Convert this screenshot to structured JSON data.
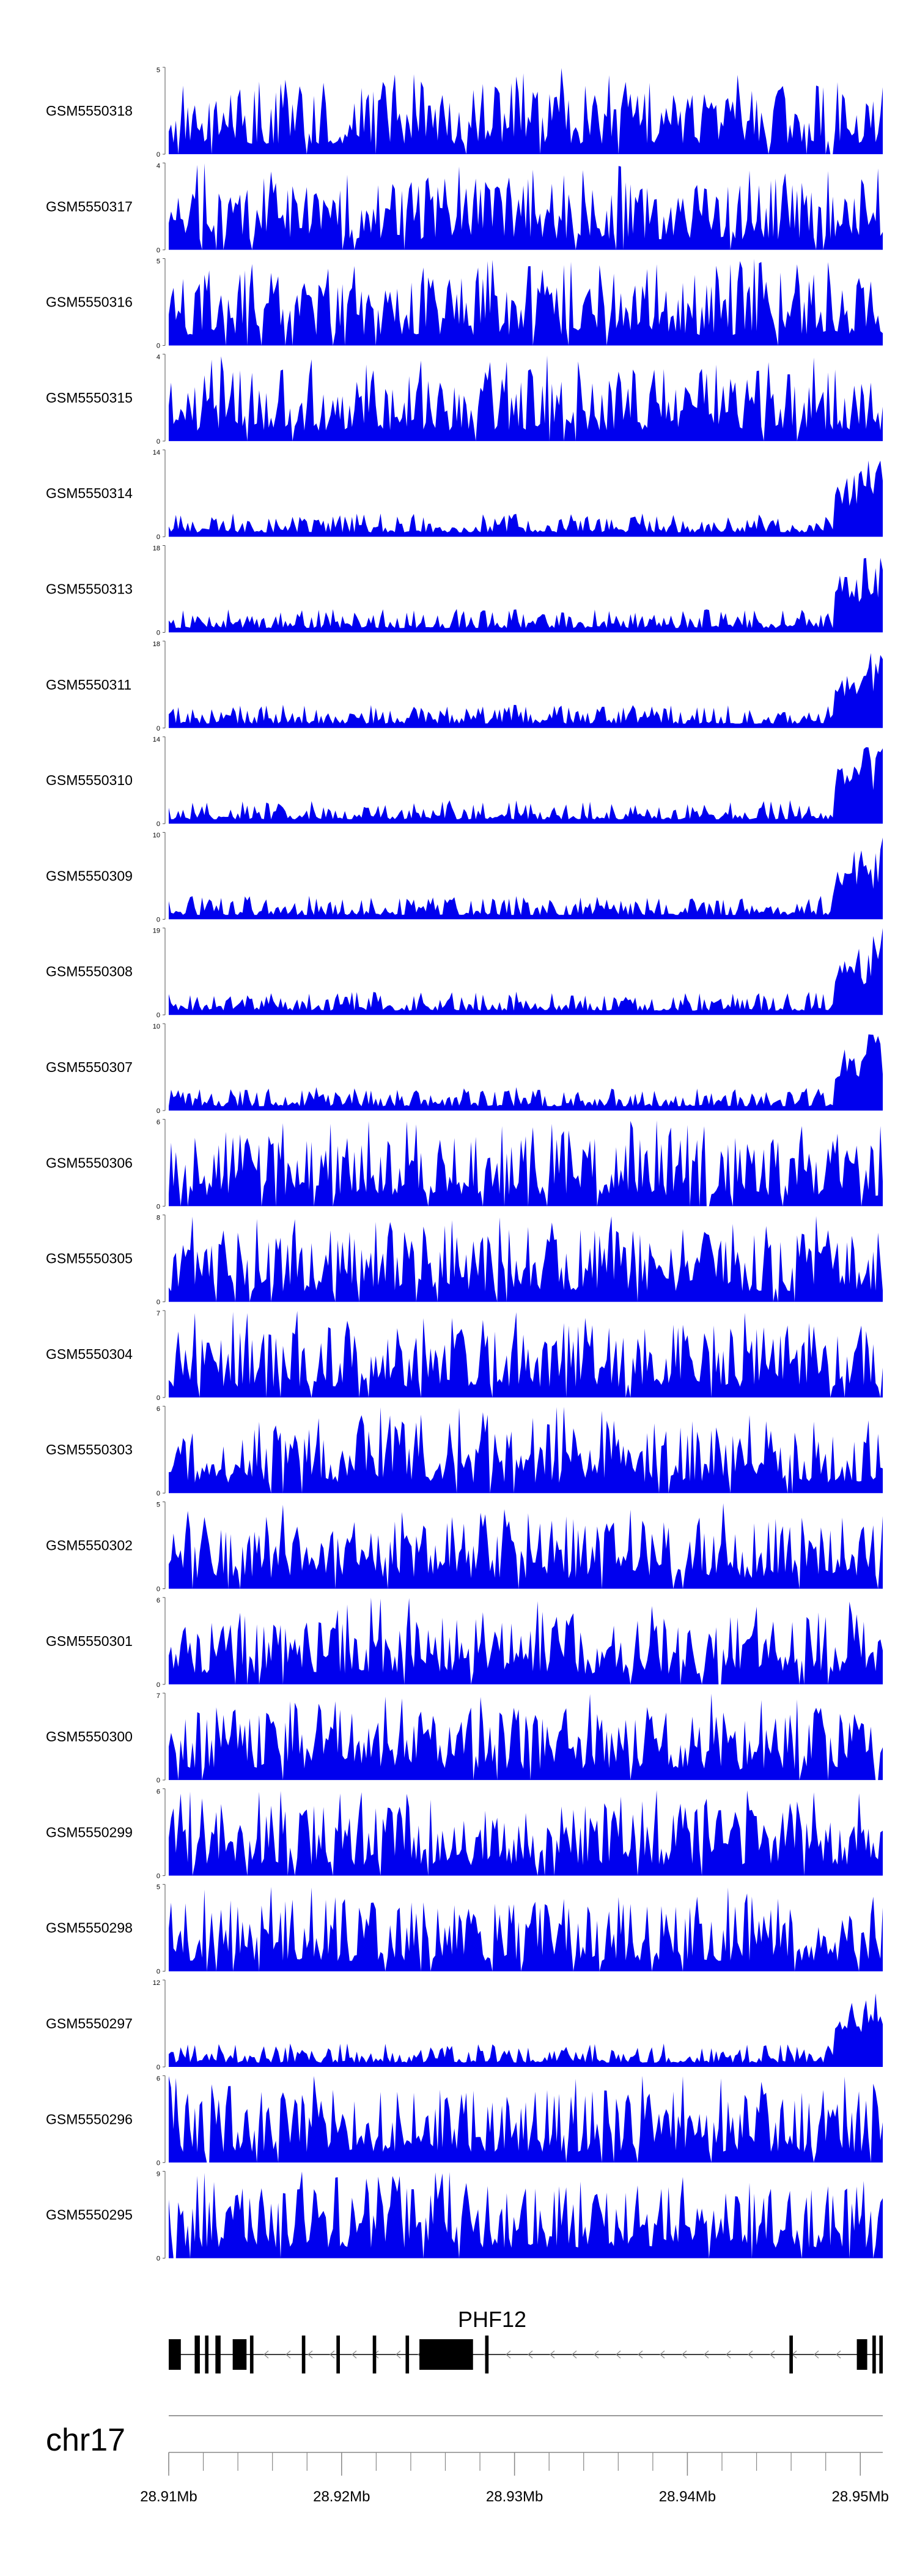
{
  "chart_data": {
    "type": "area",
    "tracks": [
      {
        "name": "GSM5550318",
        "ymax": 5
      },
      {
        "name": "GSM5550317",
        "ymax": 4
      },
      {
        "name": "GSM5550316",
        "ymax": 5
      },
      {
        "name": "GSM5550315",
        "ymax": 4
      },
      {
        "name": "GSM5550314",
        "ymax": 14
      },
      {
        "name": "GSM5550313",
        "ymax": 18
      },
      {
        "name": "GSM5550311",
        "ymax": 18
      },
      {
        "name": "GSM5550310",
        "ymax": 14
      },
      {
        "name": "GSM5550309",
        "ymax": 10
      },
      {
        "name": "GSM5550308",
        "ymax": 19
      },
      {
        "name": "GSM5550307",
        "ymax": 10
      },
      {
        "name": "GSM5550306",
        "ymax": 6
      },
      {
        "name": "GSM5550305",
        "ymax": 8
      },
      {
        "name": "GSM5550304",
        "ymax": 7
      },
      {
        "name": "GSM5550303",
        "ymax": 6
      },
      {
        "name": "GSM5550302",
        "ymax": 5
      },
      {
        "name": "GSM5550301",
        "ymax": 6
      },
      {
        "name": "GSM5550300",
        "ymax": 7
      },
      {
        "name": "GSM5550299",
        "ymax": 6
      },
      {
        "name": "GSM5550298",
        "ymax": 5
      },
      {
        "name": "GSM5550297",
        "ymax": 12
      },
      {
        "name": "GSM5550296",
        "ymax": 6
      },
      {
        "name": "GSM5550295",
        "ymax": 9
      }
    ],
    "ymin_label": "0",
    "fill_color": "#0000ee",
    "gene": {
      "name": "PHF12",
      "strand": "-",
      "exons_mb": [
        [
          28.91,
          28.9107
        ],
        [
          28.9115,
          28.9118
        ],
        [
          28.9121,
          28.9123
        ],
        [
          28.9127,
          28.913
        ],
        [
          28.9137,
          28.9145
        ],
        [
          28.9147,
          28.9149
        ],
        [
          28.9177,
          28.9179
        ],
        [
          28.9197,
          28.9199
        ],
        [
          28.9218,
          28.922
        ],
        [
          28.9237,
          28.9239
        ],
        [
          28.9245,
          28.9276
        ],
        [
          28.9283,
          28.9285
        ],
        [
          28.9459,
          28.9461
        ],
        [
          28.9498,
          28.9504
        ],
        [
          28.9507,
          28.9509
        ],
        [
          28.9511,
          28.9513
        ]
      ]
    },
    "chromosome": "chr17",
    "xaxis": {
      "range_mb": [
        28.91,
        28.9513
      ],
      "major_ticks": [
        28.91,
        28.92,
        28.93,
        28.94,
        28.95
      ],
      "tick_labels": [
        "28.91Mb",
        "28.92Mb",
        "28.93Mb",
        "28.94Mb",
        "28.95Mb"
      ],
      "minor_step_mb": 0.002
    }
  }
}
